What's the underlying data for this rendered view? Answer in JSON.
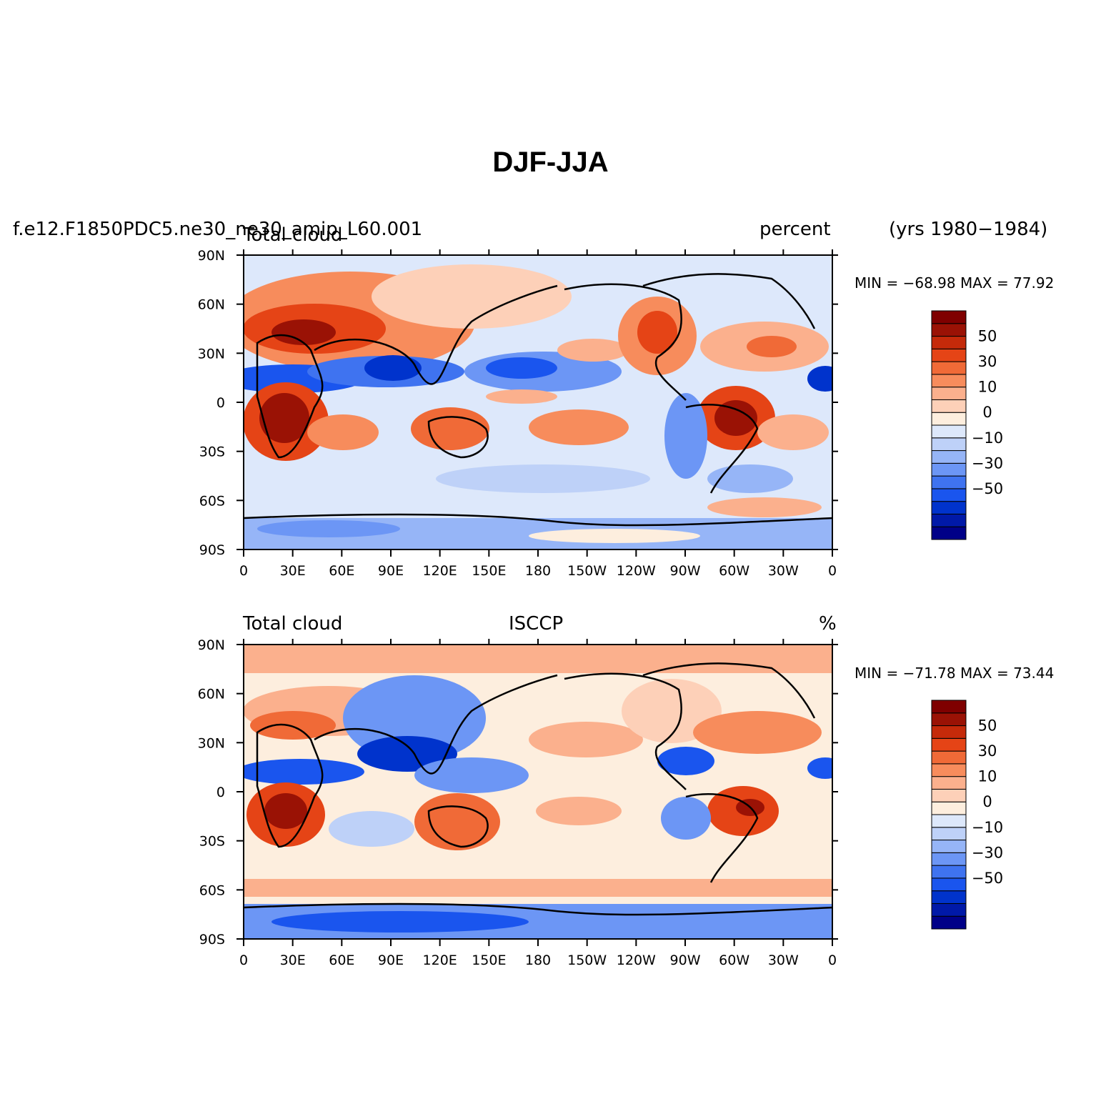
{
  "title": "DJF-JJA",
  "colorbar": {
    "colors": [
      "#000088",
      "#0019a8",
      "#0033cc",
      "#1a55ee",
      "#3f73f0",
      "#6c96f5",
      "#96b5f7",
      "#bed1f8",
      "#dde8fb",
      "#fdeede",
      "#fdd0b8",
      "#fbb08d",
      "#f78c5c",
      "#f06a37",
      "#e54416",
      "#c52a0a",
      "#9a1205",
      "#7f0000"
    ],
    "tick_labels": [
      "50",
      "30",
      "10",
      "0",
      "−10",
      "−30",
      "−50"
    ]
  },
  "panels": [
    {
      "left_label": "f.e12.F1850PDC5.ne30_ne30_amip_L60.001",
      "left_sub_label": "Total cloud",
      "center_label": "",
      "right_label": "percent",
      "years_label": "(yrs 1980−1984)",
      "min_max": "MIN = −68.98 MAX =  77.92",
      "x_ticks": [
        "0",
        "30E",
        "60E",
        "90E",
        "120E",
        "150E",
        "180",
        "150W",
        "120W",
        "90W",
        "60W",
        "30W",
        "0"
      ],
      "y_ticks": [
        "90N",
        "60N",
        "30N",
        "0",
        "30S",
        "60S",
        "90S"
      ]
    },
    {
      "left_label": "Total cloud",
      "left_sub_label": "",
      "center_label": "ISCCP",
      "right_label": "%",
      "years_label": "",
      "min_max": "MIN = −71.78 MAX =  73.44",
      "x_ticks": [
        "0",
        "30E",
        "60E",
        "90E",
        "120E",
        "150E",
        "180",
        "150W",
        "120W",
        "90W",
        "60W",
        "30W",
        "0"
      ],
      "y_ticks": [
        "90N",
        "60N",
        "30N",
        "0",
        "30S",
        "60S",
        "90S"
      ]
    }
  ]
}
